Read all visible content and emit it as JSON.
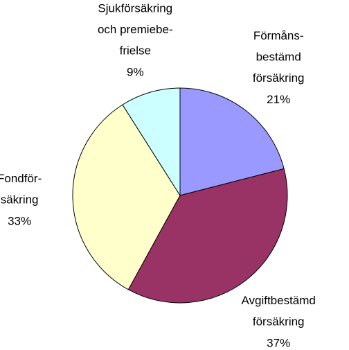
{
  "chart_data": {
    "type": "pie",
    "categories": [
      "Förmåns-\nbestämd\nförsäkring",
      "Avgiftbestämd\nförsäkring",
      "Fondför-\nsäkring",
      "Sjukförsäkring\noch premiebe-\nfrielse"
    ],
    "values": [
      21,
      37,
      33,
      9
    ],
    "value_labels": [
      "21%",
      "37%",
      "33%",
      "9%"
    ],
    "colors": [
      "#9999ff",
      "#993366",
      "#ffffcc",
      "#ccffff"
    ]
  }
}
